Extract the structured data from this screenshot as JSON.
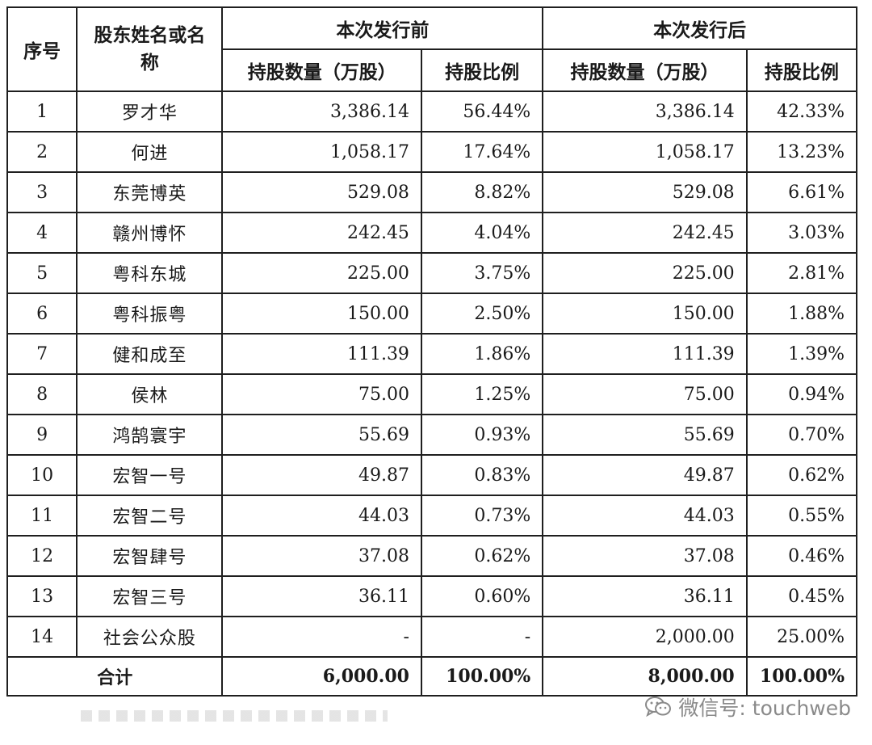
{
  "headers": {
    "col_no": "序号",
    "col_name": "股东姓名或名称",
    "group_before": "本次发行前",
    "group_after": "本次发行后",
    "shares_label": "持股数量（万股）",
    "ratio_label": "持股比例"
  },
  "rows": [
    {
      "no": "1",
      "name": "罗才华",
      "before_shares": "3,386.14",
      "before_ratio": "56.44%",
      "after_shares": "3,386.14",
      "after_ratio": "42.33%"
    },
    {
      "no": "2",
      "name": "何进",
      "before_shares": "1,058.17",
      "before_ratio": "17.64%",
      "after_shares": "1,058.17",
      "after_ratio": "13.23%"
    },
    {
      "no": "3",
      "name": "东莞博英",
      "before_shares": "529.08",
      "before_ratio": "8.82%",
      "after_shares": "529.08",
      "after_ratio": "6.61%"
    },
    {
      "no": "4",
      "name": "赣州博怀",
      "before_shares": "242.45",
      "before_ratio": "4.04%",
      "after_shares": "242.45",
      "after_ratio": "3.03%"
    },
    {
      "no": "5",
      "name": "粤科东城",
      "before_shares": "225.00",
      "before_ratio": "3.75%",
      "after_shares": "225.00",
      "after_ratio": "2.81%"
    },
    {
      "no": "6",
      "name": "粤科振粤",
      "before_shares": "150.00",
      "before_ratio": "2.50%",
      "after_shares": "150.00",
      "after_ratio": "1.88%"
    },
    {
      "no": "7",
      "name": "健和成至",
      "before_shares": "111.39",
      "before_ratio": "1.86%",
      "after_shares": "111.39",
      "after_ratio": "1.39%"
    },
    {
      "no": "8",
      "name": "侯林",
      "before_shares": "75.00",
      "before_ratio": "1.25%",
      "after_shares": "75.00",
      "after_ratio": "0.94%"
    },
    {
      "no": "9",
      "name": "鸿鹄寰宇",
      "before_shares": "55.69",
      "before_ratio": "0.93%",
      "after_shares": "55.69",
      "after_ratio": "0.70%"
    },
    {
      "no": "10",
      "name": "宏智一号",
      "before_shares": "49.87",
      "before_ratio": "0.83%",
      "after_shares": "49.87",
      "after_ratio": "0.62%"
    },
    {
      "no": "11",
      "name": "宏智二号",
      "before_shares": "44.03",
      "before_ratio": "0.73%",
      "after_shares": "44.03",
      "after_ratio": "0.55%"
    },
    {
      "no": "12",
      "name": "宏智肆号",
      "before_shares": "37.08",
      "before_ratio": "0.62%",
      "after_shares": "37.08",
      "after_ratio": "0.46%"
    },
    {
      "no": "13",
      "name": "宏智三号",
      "before_shares": "36.11",
      "before_ratio": "0.60%",
      "after_shares": "36.11",
      "after_ratio": "0.45%"
    },
    {
      "no": "14",
      "name": "社会公众股",
      "before_shares": "-",
      "before_ratio": "-",
      "after_shares": "2,000.00",
      "after_ratio": "25.00%"
    }
  ],
  "total": {
    "label": "合计",
    "before_shares": "6,000.00",
    "before_ratio": "100.00%",
    "after_shares": "8,000.00",
    "after_ratio": "100.00%"
  },
  "watermark": {
    "text": "微信号: touchweb",
    "icon": "wechat-icon"
  }
}
